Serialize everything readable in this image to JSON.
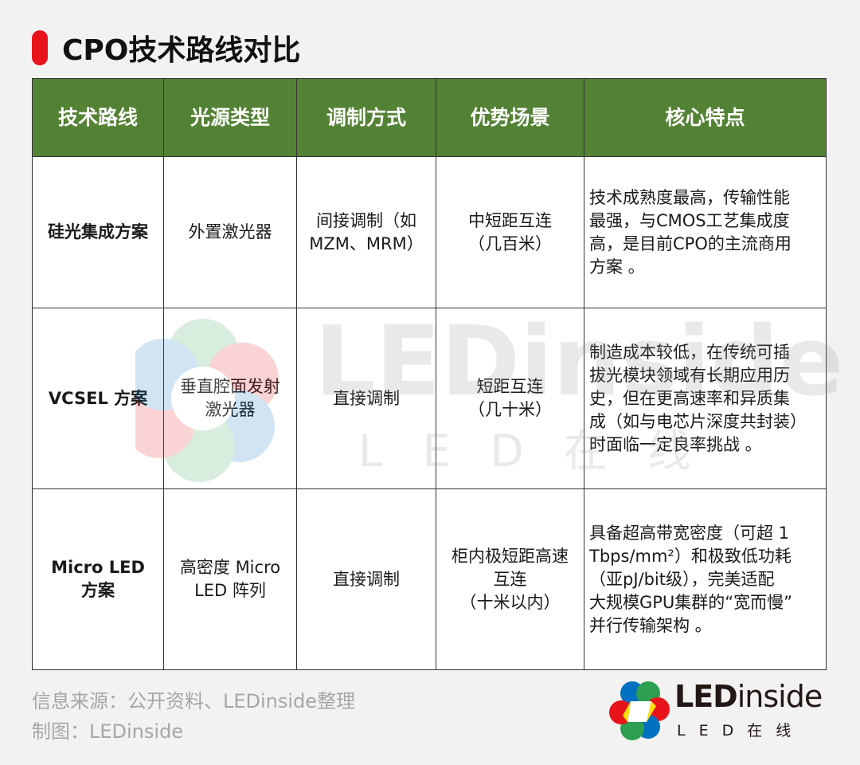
{
  "title": "CPO技术路线对比",
  "colors": {
    "accent": "#e8141b",
    "header_bg": "#548235",
    "background": "#f2f2f2"
  },
  "table": {
    "headers": [
      "技术路线",
      "光源类型",
      "调制方式",
      "优势场景",
      "核心特点"
    ],
    "rows": [
      [
        "硅光集成方案",
        "外置激光器",
        "间接调制（如\nMZM、MRM）",
        "中短距互连\n（几百米）",
        "技术成熟度最高，传输性能\n最强，与CMOS工艺集成度\n高，是目前CPO的主流商用\n方案 。"
      ],
      [
        "VCSEL 方案",
        "垂直腔面发射\n激光器",
        "直接调制",
        "短距互连\n（几十米）",
        "制造成本较低，在传统可插\n拔光模块领域有长期应用历\n史，但在更高速率和异质集\n成（如与电芯片深度共封装）\n时面临一定良率挑战 。"
      ],
      [
        "Micro LED\n方案",
        "高密度 Micro\nLED 阵列",
        "直接调制",
        "柜内极短距高速\n互连\n（十米以内）",
        "具备超高带宽密度（可超 1\nTbps/mm²）和极致低功耗\n（亚pJ/bit级），完美适配\n大规模GPU集群的“宽而慢”\n并行传输架构 。"
      ]
    ]
  },
  "footer": {
    "source": "信息来源：公开资料、LEDinside整理",
    "made_by": "制图：LEDinside"
  },
  "logo": {
    "main_bold": "LED",
    "main_thin": "inside",
    "sub": "LED在线"
  },
  "watermark": {
    "main": "LEDinside",
    "sub": "LED在线"
  }
}
